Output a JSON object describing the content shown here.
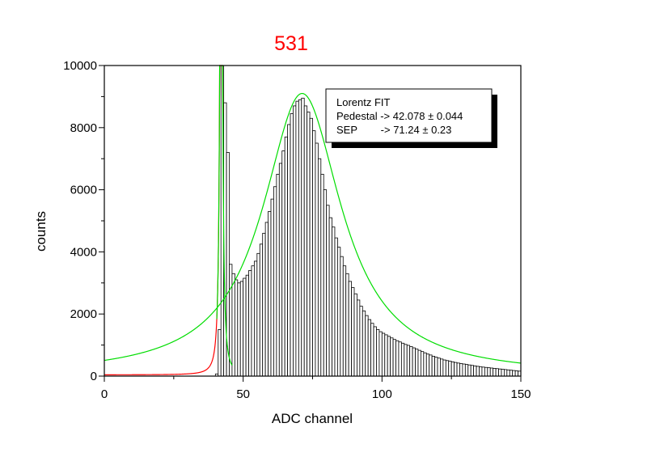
{
  "chart_data": {
    "type": "bar",
    "title": "531",
    "xlabel": "ADC channel",
    "ylabel": "counts",
    "xlim": [
      0,
      150
    ],
    "ylim": [
      0,
      10000
    ],
    "xticks": [
      0,
      50,
      100,
      150
    ],
    "yticks": [
      0,
      2000,
      4000,
      6000,
      8000,
      10000
    ],
    "grid": false,
    "histogram": {
      "bin_width": 1,
      "x": [
        40,
        41,
        42,
        43,
        44,
        45,
        46,
        47,
        48,
        49,
        50,
        51,
        52,
        53,
        54,
        55,
        56,
        57,
        58,
        59,
        60,
        61,
        62,
        63,
        64,
        65,
        66,
        67,
        68,
        69,
        70,
        71,
        72,
        73,
        74,
        75,
        76,
        77,
        78,
        79,
        80,
        81,
        82,
        83,
        84,
        85,
        86,
        87,
        88,
        89,
        90,
        91,
        92,
        93,
        94,
        95,
        96,
        97,
        98,
        99,
        100,
        101,
        102,
        103,
        104,
        105,
        106,
        107,
        108,
        109,
        110,
        111,
        112,
        113,
        114,
        115,
        116,
        117,
        118,
        119,
        120,
        121,
        122,
        123,
        124,
        125,
        126,
        127,
        128,
        129,
        130,
        131,
        132,
        133,
        134,
        135,
        136,
        137,
        138,
        139,
        140,
        141,
        142,
        143,
        144,
        145,
        146,
        147,
        148,
        149
      ],
      "counts": [
        70,
        1500,
        10000,
        8800,
        7200,
        3600,
        3300,
        3100,
        3000,
        3050,
        3150,
        3250,
        3400,
        3550,
        3700,
        3950,
        4250,
        4600,
        4950,
        5300,
        5700,
        6100,
        6500,
        6850,
        7250,
        7700,
        8100,
        8450,
        8700,
        8850,
        8900,
        8950,
        8700,
        8500,
        8300,
        7900,
        7500,
        7000,
        6500,
        6000,
        5500,
        5100,
        4800,
        4450,
        4150,
        3850,
        3550,
        3300,
        3050,
        2850,
        2650,
        2450,
        2250,
        2100,
        1950,
        1820,
        1700,
        1590,
        1500,
        1430,
        1380,
        1330,
        1280,
        1230,
        1180,
        1140,
        1100,
        1060,
        1020,
        990,
        950,
        910,
        870,
        830,
        790,
        750,
        710,
        680,
        640,
        610,
        580,
        550,
        520,
        500,
        480,
        460,
        440,
        420,
        405,
        390,
        375,
        360,
        345,
        330,
        315,
        300,
        290,
        280,
        270,
        260,
        250,
        240,
        230,
        220,
        210,
        200,
        190,
        180,
        170,
        160
      ]
    },
    "fits": [
      {
        "model": "lorentz",
        "color": "#ff0000",
        "x0": 42.078,
        "gamma": 0.43,
        "peak": 26000,
        "base": 40,
        "xrange": [
          0,
          42.7
        ]
      },
      {
        "model": "lorentz",
        "color": "#00dd00",
        "x0": 42.078,
        "gamma": 0.43,
        "peak": 26000,
        "base": 40,
        "xrange": [
          40.5,
          46
        ]
      },
      {
        "model": "lorentz",
        "color": "#00dd00",
        "x0": 71.24,
        "gamma": 17.3,
        "peak": 9100,
        "base": 0,
        "xrange": [
          0,
          150
        ]
      }
    ],
    "legend": {
      "placement": "top-right",
      "lines": [
        "Lorentz FIT",
        "Pedestal -> 42.078 ± 0.044",
        "SEP        -> 71.24 ± 0.23"
      ]
    }
  }
}
